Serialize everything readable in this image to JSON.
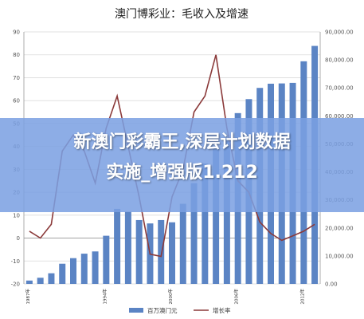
{
  "chart_data": {
    "type": "bar",
    "title": "澳门博彩业：毛收入及增速",
    "series": [
      {
        "name": "百万澳门元",
        "type": "bar",
        "axis": "right",
        "color": "#5b84c4",
        "values": [
          1200,
          2200,
          3800,
          7200,
          9200,
          10800,
          11600,
          17200,
          26800,
          25800,
          22800,
          21600,
          22800,
          22000,
          28600,
          36000,
          43000,
          48500,
          52000,
          61000,
          66000,
          70000,
          71500,
          71600,
          71800,
          79500,
          85000
        ]
      },
      {
        "name": "增长率",
        "type": "line",
        "axis": "left",
        "color": "#8b3a3a",
        "values": [
          3,
          0,
          6,
          38,
          45,
          38,
          24,
          48,
          62,
          40,
          18,
          -7,
          -8,
          18,
          30,
          55,
          62,
          80,
          48,
          25,
          20,
          7,
          2,
          -1,
          1,
          3,
          6
        ]
      }
    ],
    "categories": [
      "1987",
      "1988",
      "1989",
      "1990",
      "1991",
      "1992",
      "1993",
      "1994",
      "1995",
      "1996",
      "1997",
      "1998",
      "1999",
      "2000",
      "2001",
      "2002",
      "2003",
      "2004",
      "2005",
      "2006",
      "2007",
      "2008",
      "2009",
      "2010",
      "2011",
      "2012",
      "2013"
    ],
    "category_labels": [
      "1987年",
      "",
      "",
      "",
      "",
      "",
      "",
      "1994年",
      "",
      "",
      "",
      "",
      "",
      "2000年",
      "",
      "",
      "",
      "",
      "",
      "2006年",
      "",
      "",
      "",
      "",
      "",
      "2012年",
      ""
    ],
    "left_axis": {
      "ylim": [
        -20,
        90
      ],
      "ticks": [
        -20,
        -10,
        0,
        10,
        20,
        30,
        40,
        50,
        60,
        70,
        80,
        90
      ]
    },
    "right_axis": {
      "ylim": [
        0,
        90000
      ],
      "ticks": [
        "0.00",
        "10,000.00",
        "20,000.00",
        "30,000.00",
        "40,000.00",
        "50,000.00",
        "60,000.00",
        "70,000.00",
        "80,000.00",
        "90,000.00"
      ]
    },
    "grid": true,
    "legend_position": "bottom"
  },
  "overlay": {
    "text": "新澳门彩霸王,深层计划数据\n实施_增强版1.212"
  }
}
